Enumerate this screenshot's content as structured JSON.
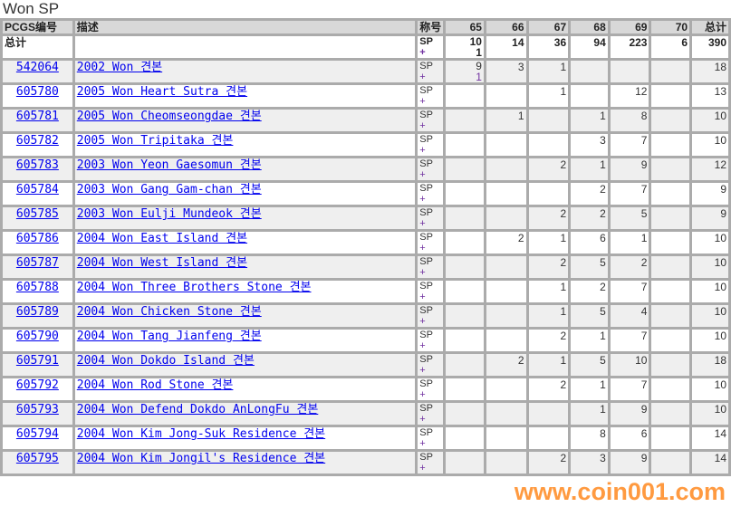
{
  "sheet_title": "Won SP",
  "headers": {
    "id": "PCGS编号",
    "desc": "描述",
    "grade": "称号",
    "g65": "65",
    "g66": "66",
    "g67": "67",
    "g68": "68",
    "g69": "69",
    "g70": "70",
    "total": "总计"
  },
  "totals": {
    "label": "总计",
    "grade": "SP",
    "plus": "+",
    "g65": "10",
    "g65b": "1",
    "g66": "14",
    "g67": "36",
    "g68": "94",
    "g69": "223",
    "g70": "6",
    "total": "390"
  },
  "rows": [
    {
      "id": "542064",
      "desc": "2002 Won 견본",
      "g65": "9",
      "g65b": "1",
      "g66": "3",
      "g67": "1",
      "g68": "",
      "g69": "",
      "g70": "",
      "total": "18"
    },
    {
      "id": "605780",
      "desc": "2005 Won Heart Sutra 견본",
      "g65": "",
      "g66": "",
      "g67": "1",
      "g68": "",
      "g69": "12",
      "g70": "",
      "total": "13"
    },
    {
      "id": "605781",
      "desc": "2005 Won Cheomseongdae 견본",
      "g65": "",
      "g66": "1",
      "g67": "",
      "g68": "1",
      "g69": "8",
      "g70": "",
      "total": "10"
    },
    {
      "id": "605782",
      "desc": "2005 Won Tripitaka 견본",
      "g65": "",
      "g66": "",
      "g67": "",
      "g68": "3",
      "g69": "7",
      "g70": "",
      "total": "10"
    },
    {
      "id": "605783",
      "desc": "2003 Won Yeon Gaesomun 견본",
      "g65": "",
      "g66": "",
      "g67": "2",
      "g68": "1",
      "g69": "9",
      "g70": "",
      "total": "12"
    },
    {
      "id": "605784",
      "desc": "2003 Won Gang Gam-chan 견본",
      "g65": "",
      "g66": "",
      "g67": "",
      "g68": "2",
      "g69": "7",
      "g70": "",
      "total": "9"
    },
    {
      "id": "605785",
      "desc": "2003 Won Eulji Mundeok 견본",
      "g65": "",
      "g66": "",
      "g67": "2",
      "g68": "2",
      "g69": "5",
      "g70": "",
      "total": "9"
    },
    {
      "id": "605786",
      "desc": "2004 Won East Island 견본",
      "g65": "",
      "g66": "2",
      "g67": "1",
      "g68": "6",
      "g69": "1",
      "g70": "",
      "total": "10"
    },
    {
      "id": "605787",
      "desc": "2004 Won West Island 견본",
      "g65": "",
      "g66": "",
      "g67": "2",
      "g68": "5",
      "g69": "2",
      "g70": "",
      "total": "10"
    },
    {
      "id": "605788",
      "desc": "2004 Won Three Brothers Stone 견본",
      "g65": "",
      "g66": "",
      "g67": "1",
      "g68": "2",
      "g69": "7",
      "g70": "",
      "total": "10"
    },
    {
      "id": "605789",
      "desc": "2004 Won Chicken Stone 견본",
      "g65": "",
      "g66": "",
      "g67": "1",
      "g68": "5",
      "g69": "4",
      "g70": "",
      "total": "10"
    },
    {
      "id": "605790",
      "desc": "2004 Won Tang Jianfeng 견본",
      "g65": "",
      "g66": "",
      "g67": "2",
      "g68": "1",
      "g69": "7",
      "g70": "",
      "total": "10"
    },
    {
      "id": "605791",
      "desc": "2004 Won Dokdo Island 견본",
      "g65": "",
      "g66": "2",
      "g67": "1",
      "g68": "5",
      "g69": "10",
      "g70": "",
      "total": "18"
    },
    {
      "id": "605792",
      "desc": "2004 Won Rod Stone 견본",
      "g65": "",
      "g66": "",
      "g67": "2",
      "g68": "1",
      "g69": "7",
      "g70": "",
      "total": "10"
    },
    {
      "id": "605793",
      "desc": "2004 Won Defend Dokdo AnLongFu 견본",
      "g65": "",
      "g66": "",
      "g67": "",
      "g68": "1",
      "g69": "9",
      "g70": "",
      "total": "10"
    },
    {
      "id": "605794",
      "desc": "2004 Won Kim Jong-Suk Residence 견본",
      "g65": "",
      "g66": "",
      "g67": "",
      "g68": "8",
      "g69": "6",
      "g70": "",
      "total": "14"
    },
    {
      "id": "605795",
      "desc": "2004 Won Kim Jongil's Residence 견본",
      "g65": "",
      "g66": "",
      "g67": "2",
      "g68": "3",
      "g69": "9",
      "g70": "",
      "total": "14"
    }
  ],
  "row_grade": "SP",
  "row_plus": "+",
  "watermark": "www.coin001.com"
}
